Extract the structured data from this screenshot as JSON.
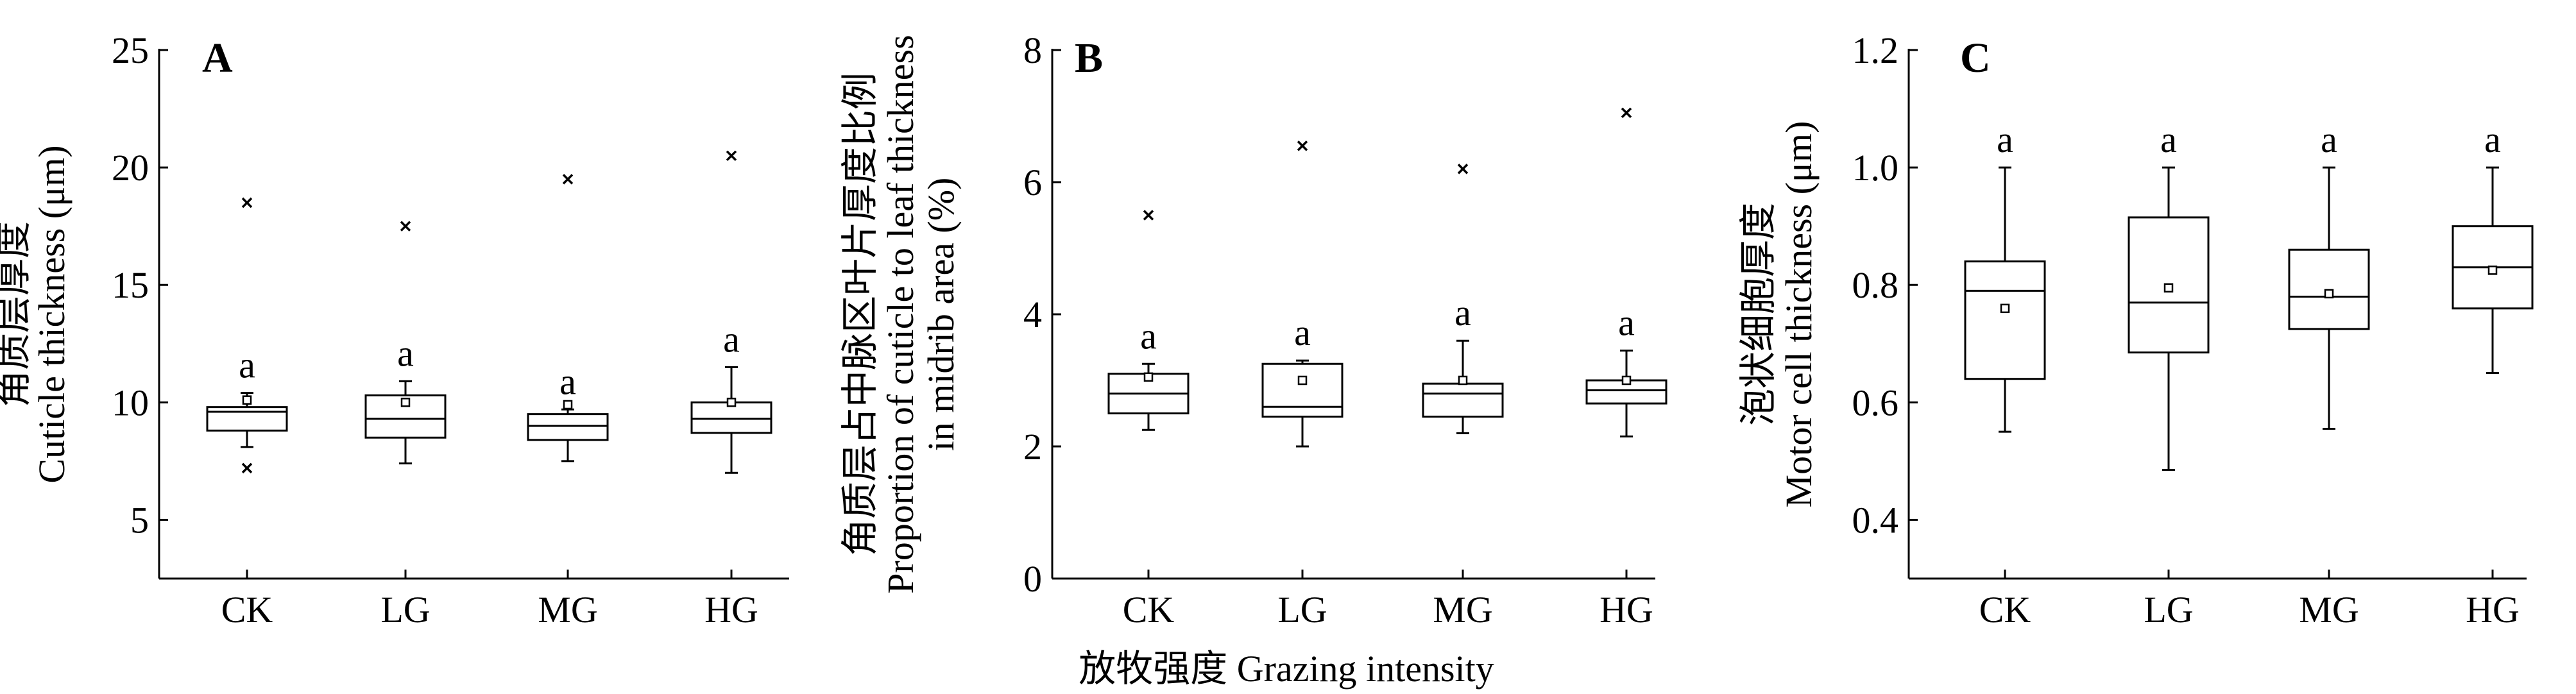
{
  "figure": {
    "shared_xlabel": "放牧强度 Grazing intensity"
  },
  "chart_data": [
    {
      "type": "box",
      "panel": "A",
      "ylabel": [
        "角质层厚度",
        "Cuticle thickness (μm)"
      ],
      "ylim": [
        2.5,
        25
      ],
      "yticks": [
        5,
        10,
        15,
        20,
        25
      ],
      "categories": [
        "CK",
        "LG",
        "MG",
        "HG"
      ],
      "boxes": [
        {
          "whisker_low": 8.1,
          "q1": 8.8,
          "median": 9.6,
          "q3": 9.8,
          "whisker_high": 10.4,
          "mean": 10.1,
          "outliers": [
            18.5,
            7.2
          ],
          "sig": "a"
        },
        {
          "whisker_low": 7.4,
          "q1": 8.5,
          "median": 9.3,
          "q3": 10.3,
          "whisker_high": 10.9,
          "mean": 10.0,
          "outliers": [
            17.5
          ],
          "sig": "a"
        },
        {
          "whisker_low": 7.5,
          "q1": 8.4,
          "median": 9.0,
          "q3": 9.5,
          "whisker_high": 9.7,
          "mean": 9.9,
          "outliers": [
            19.5
          ],
          "sig": "a"
        },
        {
          "whisker_low": 7.0,
          "q1": 8.7,
          "median": 9.3,
          "q3": 10.0,
          "whisker_high": 11.5,
          "mean": 10.0,
          "outliers": [
            20.5
          ],
          "sig": "a"
        }
      ]
    },
    {
      "type": "box",
      "panel": "B",
      "ylabel": [
        "角质层占中脉区叶片厚度比例",
        "Proportion of cuticle to leaf thickness",
        "in midrib area (%)"
      ],
      "ylim": [
        0,
        8
      ],
      "yticks": [
        0,
        2,
        4,
        6,
        8
      ],
      "categories": [
        "CK",
        "LG",
        "MG",
        "HG"
      ],
      "boxes": [
        {
          "whisker_low": 2.25,
          "q1": 2.5,
          "median": 2.8,
          "q3": 3.1,
          "whisker_high": 3.25,
          "mean": 3.05,
          "outliers": [
            5.5
          ],
          "sig": "a"
        },
        {
          "whisker_low": 2.0,
          "q1": 2.45,
          "median": 2.6,
          "q3": 3.25,
          "whisker_high": 3.3,
          "mean": 3.0,
          "outliers": [
            6.55
          ],
          "sig": "a"
        },
        {
          "whisker_low": 2.2,
          "q1": 2.45,
          "median": 2.8,
          "q3": 2.95,
          "whisker_high": 3.6,
          "mean": 3.0,
          "outliers": [
            6.2
          ],
          "sig": "a"
        },
        {
          "whisker_low": 2.15,
          "q1": 2.65,
          "median": 2.85,
          "q3": 3.0,
          "whisker_high": 3.45,
          "mean": 3.0,
          "outliers": [
            7.05
          ],
          "sig": "a"
        }
      ]
    },
    {
      "type": "box",
      "panel": "C",
      "ylabel": [
        "泡状细胞厚度",
        "Motor cell thickness (μm)"
      ],
      "ylim": [
        0.3,
        1.2
      ],
      "yticks": [
        "0.4",
        "0.6",
        "0.8",
        "1.0",
        "1.2"
      ],
      "categories": [
        "CK",
        "LG",
        "MG",
        "HG"
      ],
      "boxes": [
        {
          "whisker_low": 0.55,
          "q1": 0.64,
          "median": 0.79,
          "q3": 0.84,
          "whisker_high": 1.0,
          "mean": 0.76,
          "outliers": [],
          "sig": "a"
        },
        {
          "whisker_low": 0.485,
          "q1": 0.685,
          "median": 0.77,
          "q3": 0.915,
          "whisker_high": 1.0,
          "mean": 0.795,
          "outliers": [],
          "sig": "a"
        },
        {
          "whisker_low": 0.555,
          "q1": 0.725,
          "median": 0.78,
          "q3": 0.86,
          "whisker_high": 1.0,
          "mean": 0.785,
          "outliers": [],
          "sig": "a"
        },
        {
          "whisker_low": 0.65,
          "q1": 0.76,
          "median": 0.83,
          "q3": 0.9,
          "whisker_high": 1.0,
          "mean": 0.825,
          "outliers": [],
          "sig": "a"
        }
      ]
    }
  ]
}
